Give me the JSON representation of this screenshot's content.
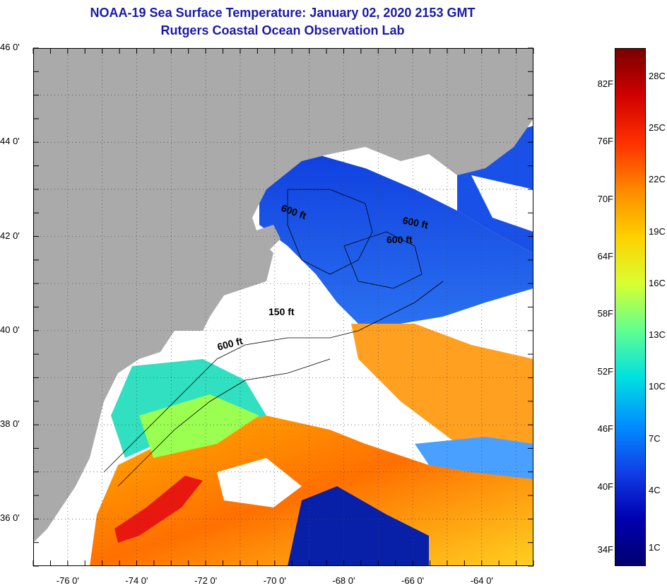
{
  "header": {
    "title": "NOAA-19 Sea Surface Temperature:  January 02, 2020 2153 GMT",
    "subtitle": "Rutgers Coastal Ocean Observation Lab"
  },
  "map": {
    "lat_ticks": [
      "46 0'",
      "44 0'",
      "42 0'",
      "40 0'",
      "38 0'",
      "36 0'"
    ],
    "lat_values": [
      46,
      44,
      42,
      40,
      38,
      36
    ],
    "lon_ticks": [
      "-76 0'",
      "-74 0'",
      "-72 0'",
      "-70 0'",
      "-68 0'",
      "-66 0'",
      "-64 0'"
    ],
    "lon_values": [
      -76,
      -74,
      -72,
      -70,
      -68,
      -66,
      -64
    ],
    "lat_range": [
      35.0,
      46.0
    ],
    "lon_range": [
      -77.0,
      -62.5
    ],
    "grid": "dotted",
    "land_color": "#aaaaaa",
    "cloud_color": "#ffffff",
    "isobath_labels": [
      "600 ft",
      "600 ft",
      "600 ft",
      "150 ft",
      "600 ft"
    ]
  },
  "colorbar": {
    "fahrenheit": [
      "82F",
      "76F",
      "70F",
      "64F",
      "58F",
      "52F",
      "46F",
      "40F",
      "34F"
    ],
    "celsius": [
      "28C",
      "25C",
      "22C",
      "19C",
      "16C",
      "13C",
      "10C",
      "7C",
      "4C",
      "1C"
    ],
    "colors_top_to_bottom": [
      "#7a0000",
      "#d00000",
      "#ff3000",
      "#ff8800",
      "#ffd000",
      "#d8ff30",
      "#60ff90",
      "#00e0e0",
      "#0090ff",
      "#1040e8",
      "#0000b0",
      "#000070"
    ]
  }
}
